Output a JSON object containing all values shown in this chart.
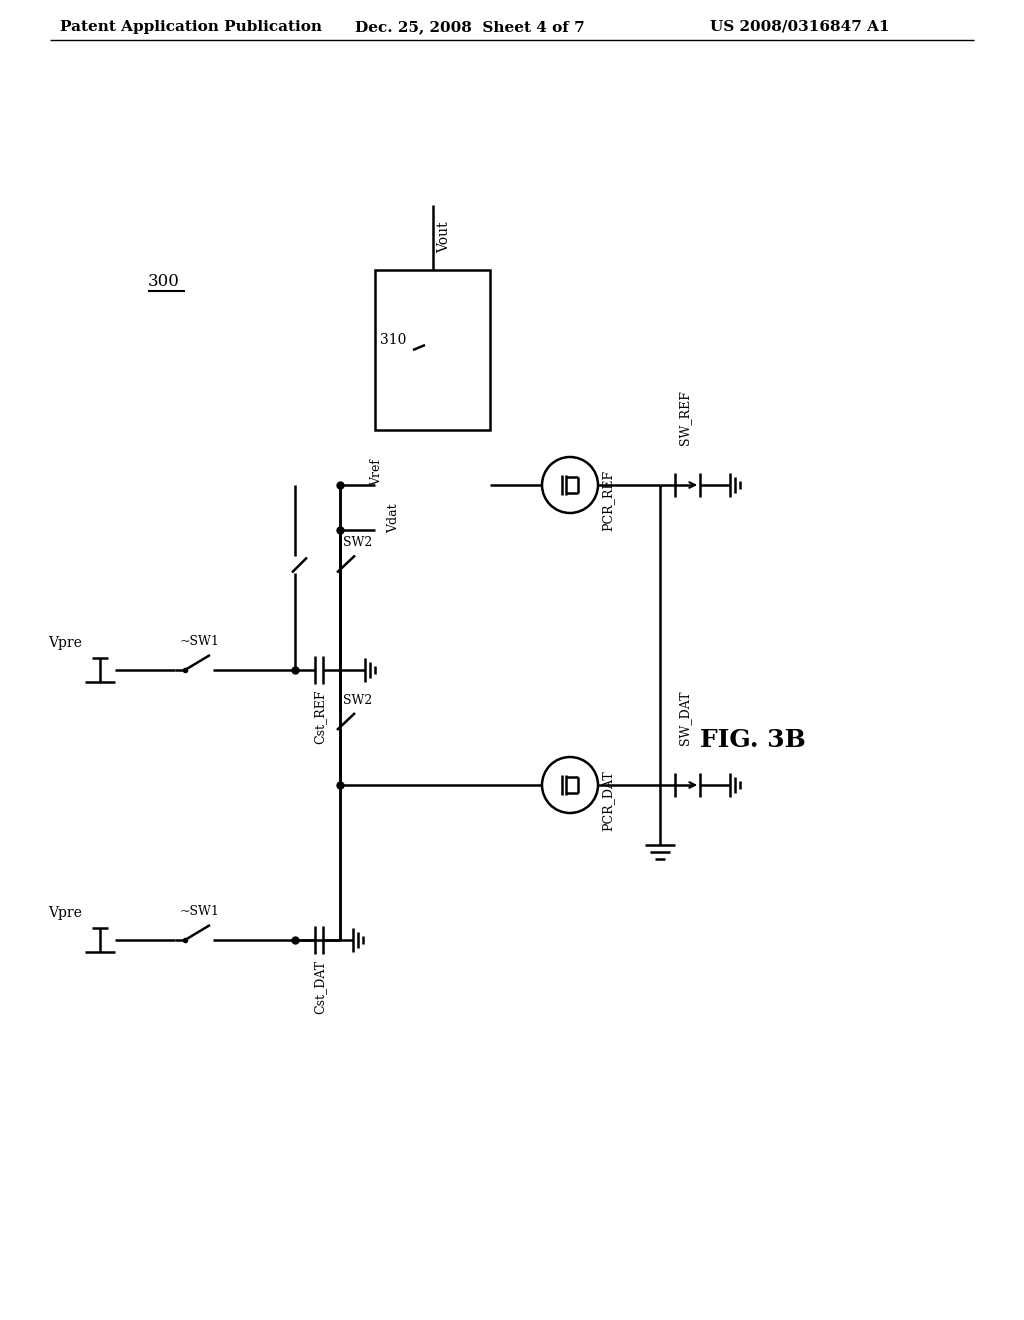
{
  "header_left": "Patent Application Publication",
  "header_center": "Dec. 25, 2008  Sheet 4 of 7",
  "header_right": "US 2008/0316847 A1",
  "fig_label": "FIG. 3B",
  "circuit_label": "300",
  "amp_label": "310",
  "vout_label": "Vout",
  "vref_label": "Vref",
  "vdat_label": "Vdat",
  "pcr_ref_label": "PCR_REF",
  "sw_ref_label": "SW_REF",
  "pcr_dat_label": "PCR_DAT",
  "sw_dat_label": "SW_DAT",
  "vpre_ref_label": "Vpre",
  "sw1_ref_label": "~SW1",
  "sw2_ref_label": "SW2",
  "cst_ref_label": "Cst_REF",
  "vpre_dat_label": "Vpre",
  "sw1_dat_label": "~SW1",
  "sw2_dat_label": "SW2",
  "cst_dat_label": "Cst_DAT",
  "background_color": "#ffffff",
  "line_color": "#000000"
}
